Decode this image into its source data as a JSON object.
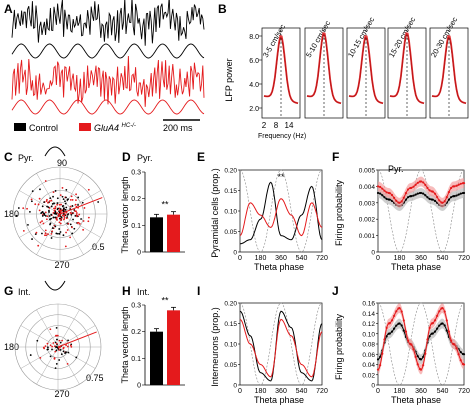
{
  "figure": {
    "panels": {
      "A": {
        "label": "A",
        "legend": {
          "control": "Control",
          "mutant_base": "GluA4",
          "mutant_sup": "HC-/-"
        },
        "scalebar": "200 ms"
      },
      "B": {
        "label": "B",
        "ylabel": "LFP power",
        "xlabel": "Frequency (Hz)",
        "yticks": [
          "2.0",
          "4.0",
          "6.0",
          "8.0"
        ],
        "xticks": [
          "2",
          "8",
          "14"
        ],
        "speed_bins": [
          "3-5 cm/sec",
          "5-10 cm/sec",
          "10-15 cm/sec",
          "15-20 cm/sec",
          "20-30 cm/sec"
        ]
      },
      "C": {
        "label": "C",
        "celltype": "Pyr.",
        "angle_top": "90",
        "angle_left": "180",
        "angle_bottom": "270",
        "radius_label": "0.5"
      },
      "D": {
        "label": "D",
        "celltype": "Pyr.",
        "ylabel": "Theta vector length",
        "yticks": [
          "0",
          "0.1",
          "0.2",
          "0.3"
        ],
        "sig": "**"
      },
      "E": {
        "label": "E",
        "ylabel": "Pyramidal cells (prop.)",
        "xlabel": "Theta phase",
        "yticks": [
          "0",
          "0.05",
          "0.10",
          "0.15",
          "0.20"
        ],
        "xticks": [
          "0",
          "180",
          "360",
          "540",
          "720"
        ],
        "sig": "**"
      },
      "F": {
        "label": "F",
        "celltype": "Pyr.",
        "ylabel": "Firing probability",
        "xlabel": "Theta phase",
        "yticks": [
          "0",
          "0.001",
          "0.002",
          "0.003",
          "0.004",
          "0.005"
        ],
        "xticks": [
          "0",
          "180",
          "360",
          "540",
          "720"
        ]
      },
      "G": {
        "label": "G",
        "celltype": "Int.",
        "angle_top": "90",
        "angle_left": "180",
        "angle_bottom": "270",
        "radius_label": "0.75"
      },
      "H": {
        "label": "H",
        "celltype": "Int.",
        "ylabel": "Theta vector length",
        "yticks": [
          "0",
          "0.1",
          "0.2",
          "0.3"
        ],
        "sig": "**"
      },
      "I": {
        "label": "I",
        "ylabel": "Interneurons (prop.)",
        "xlabel": "Theta phase",
        "yticks": [
          "0",
          "0.05",
          "0.10",
          "0.15",
          "0.20"
        ],
        "xticks": [
          "0",
          "180",
          "360",
          "540",
          "720"
        ]
      },
      "J": {
        "label": "J",
        "ylabel": "Firing probability",
        "xlabel": "Theta phase",
        "yticks": [
          "0",
          "0.02",
          "0.04",
          "0.06",
          "0.08",
          "0.10",
          "0.12",
          "0.14",
          "0.16"
        ],
        "xticks": [
          "0",
          "180",
          "360",
          "540",
          "720"
        ]
      }
    },
    "colors": {
      "control": "#000000",
      "mutant": "#e41a1c",
      "mutant_light": "#f4a0a0",
      "grey": "#999999"
    }
  },
  "chart_data": [
    {
      "type": "bar",
      "panel": "D",
      "categories": [
        "Control",
        "GluA4HC-/-"
      ],
      "values": [
        0.13,
        0.14
      ],
      "ylim": [
        0,
        0.3
      ]
    },
    {
      "type": "bar",
      "panel": "H",
      "categories": [
        "Control",
        "GluA4HC-/-"
      ],
      "values": [
        0.2,
        0.28
      ],
      "ylim": [
        0,
        0.3
      ]
    },
    {
      "type": "line",
      "panel": "E",
      "x": [
        0,
        90,
        180,
        270,
        360,
        450,
        540,
        630,
        720
      ],
      "series": [
        {
          "values": [
            0.02,
            0.03,
            0.08,
            0.17,
            0.04,
            0.03,
            0.09,
            0.16,
            0.03
          ]
        },
        {
          "values": [
            0.04,
            0.12,
            0.09,
            0.06,
            0.13,
            0.09,
            0.04,
            0.12,
            0.06
          ]
        }
      ],
      "ylim": [
        0,
        0.2
      ],
      "xlim": [
        0,
        720
      ]
    },
    {
      "type": "line",
      "panel": "I",
      "x": [
        0,
        90,
        180,
        270,
        360,
        450,
        540,
        630,
        720
      ],
      "series": [
        {
          "values": [
            0.18,
            0.12,
            0.03,
            0.01,
            0.18,
            0.14,
            0.03,
            0.01,
            0.15
          ]
        },
        {
          "values": [
            0.16,
            0.1,
            0.05,
            0.02,
            0.16,
            0.12,
            0.05,
            0.02,
            0.13
          ]
        }
      ],
      "ylim": [
        0,
        0.2
      ],
      "xlim": [
        0,
        720
      ]
    },
    {
      "type": "line",
      "panel": "F",
      "x": [
        0,
        90,
        180,
        270,
        360,
        450,
        540,
        630,
        720
      ],
      "series": [
        {
          "values": [
            0.0036,
            0.0032,
            0.0028,
            0.0034,
            0.0036,
            0.0032,
            0.0028,
            0.0034,
            0.0036
          ]
        },
        {
          "values": [
            0.004,
            0.0036,
            0.003,
            0.0039,
            0.0043,
            0.0037,
            0.003,
            0.004,
            0.0042
          ]
        }
      ],
      "ylim": [
        0,
        0.005
      ],
      "xlim": [
        0,
        720
      ]
    },
    {
      "type": "line",
      "panel": "J",
      "x": [
        0,
        90,
        180,
        270,
        360,
        450,
        540,
        630,
        720
      ],
      "series": [
        {
          "values": [
            0.05,
            0.1,
            0.12,
            0.08,
            0.05,
            0.1,
            0.12,
            0.08,
            0.06
          ]
        },
        {
          "values": [
            0.03,
            0.12,
            0.15,
            0.08,
            0.03,
            0.12,
            0.15,
            0.08,
            0.04
          ]
        }
      ],
      "ylim": [
        0,
        0.16
      ],
      "xlim": [
        0,
        720
      ]
    },
    {
      "type": "line",
      "panel": "B",
      "x": [
        2,
        5,
        8,
        11,
        14
      ],
      "series": [
        {
          "values": [
            2.5,
            4.5,
            7.8,
            4.5,
            2.5
          ]
        },
        {
          "values": [
            2.5,
            4.6,
            8.0,
            4.6,
            2.4
          ]
        }
      ],
      "ylim": [
        2,
        8
      ]
    }
  ]
}
